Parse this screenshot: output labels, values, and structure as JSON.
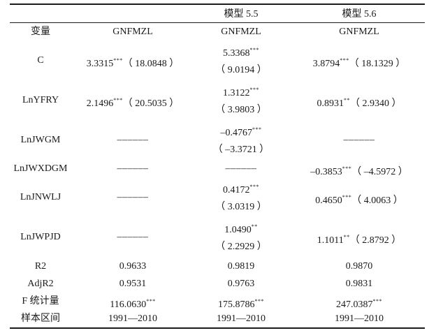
{
  "header": {
    "models": [
      "",
      "模型 5.5",
      "模型 5.6"
    ],
    "columns": [
      "变量",
      "GNFMZL",
      "GNFMZL",
      "GNFMZL"
    ]
  },
  "rows": [
    {
      "var": "C",
      "m1": {
        "coef": "3.3315",
        "stars": "***",
        "t": "（ 18.0848 ）"
      },
      "m2": {
        "coef": "5.3368",
        "stars": "***",
        "t": "（ 9.0194 ）"
      },
      "m3": {
        "coef": "3.8794",
        "stars": "***",
        "t": "（ 18.1329 ）"
      }
    },
    {
      "var": "LnYFRY",
      "m1": {
        "coef": "2.1496",
        "stars": "***",
        "t": "（ 20.5035 ）"
      },
      "m2": {
        "coef": "1.3122",
        "stars": "***",
        "t": "（ 3.9803 ）"
      },
      "m3": {
        "coef": "0.8931",
        "stars": "**",
        "t": "（ 2.9340 ）"
      }
    },
    {
      "var": "LnJWGM",
      "m1": {
        "dash": "––––––"
      },
      "m2": {
        "coef": "–0.4767",
        "stars": "***",
        "t": "（ –3.3721 ）"
      },
      "m3": {
        "dash": "––––––"
      }
    },
    {
      "var": "LnJWXDGM",
      "m1": {
        "dash": "––––––"
      },
      "m2": {
        "dash": "––––––"
      },
      "m3": {
        "coef": "–0.3853",
        "stars": "***",
        "t": "（ –4.5972 ）"
      }
    },
    {
      "var": "LnJNWLJ",
      "m1": {
        "dash": "––––––"
      },
      "m2": {
        "coef": "0.4172",
        "stars": "***",
        "t": "（ 3.0319 ）"
      },
      "m3": {
        "coef": "0.4650",
        "stars": "***",
        "t": "（ 4.0063 ）"
      }
    },
    {
      "var": "LnJWPJD",
      "m1": {
        "dash": "––––––"
      },
      "m2": {
        "coef": "1.0490",
        "stars": "**",
        "t": "（ 2.2929 ）"
      },
      "m3": {
        "coef": "1.1011",
        "stars": "**",
        "t": "（ 2.8792 ）"
      }
    }
  ],
  "stats": [
    {
      "var": "R2",
      "m1": "0.9633",
      "m2": "0.9819",
      "m3": "0.9870"
    },
    {
      "var": "AdjR2",
      "m1": "0.9531",
      "m2": "0.9763",
      "m3": "0.9831"
    },
    {
      "var": "F 统计量",
      "m1": "116.0630",
      "m1s": "***",
      "m2": "175.8786",
      "m2s": "***",
      "m3": "247.0387",
      "m3s": "***"
    },
    {
      "var": "样本区间",
      "m1": "1991—2010",
      "m2": "1991—2010",
      "m3": "1991—2010"
    }
  ]
}
